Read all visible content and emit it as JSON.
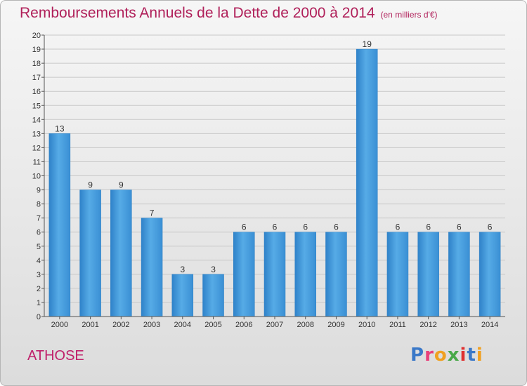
{
  "title": "Remboursements Annuels de la Dette de 2000 à 2014",
  "unit": "(en milliers d'€)",
  "commune": "ATHOSE",
  "logo": {
    "text": "Proxiti",
    "colors": [
      "#3a78c8",
      "#e8407a",
      "#f0a020",
      "#48a848",
      "#e03030",
      "#3a78c8",
      "#f0a020"
    ]
  },
  "colors": {
    "bar": "#4a9fde",
    "bar_dark": "#2a7ec4",
    "title": "#b0205a"
  },
  "chart_data": {
    "type": "bar",
    "categories": [
      "2000",
      "2001",
      "2002",
      "2003",
      "2004",
      "2005",
      "2006",
      "2007",
      "2008",
      "2009",
      "2010",
      "2011",
      "2012",
      "2013",
      "2014"
    ],
    "values": [
      13,
      9,
      9,
      7,
      3,
      3,
      6,
      6,
      6,
      6,
      19,
      6,
      6,
      6,
      6
    ],
    "ylim": [
      0,
      20
    ],
    "yticks": [
      0,
      1,
      2,
      3,
      4,
      5,
      6,
      7,
      8,
      9,
      10,
      11,
      12,
      13,
      14,
      15,
      16,
      17,
      18,
      19,
      20
    ],
    "data_labels": true
  }
}
